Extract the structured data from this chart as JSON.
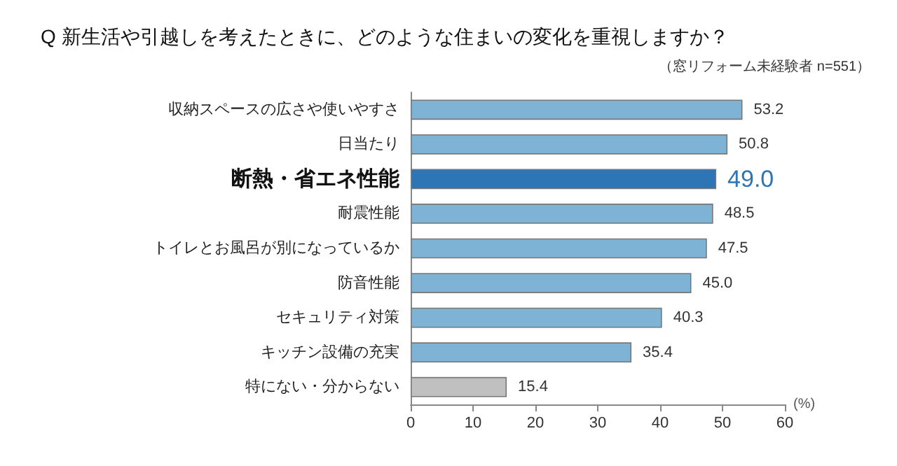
{
  "chart_data": {
    "type": "bar",
    "orientation": "horizontal",
    "title": "Q 新生活や引越しを考えたときに、どのような住まいの変化を重視しますか？",
    "subtitle": "（窓リフォーム未経験者 n=551）",
    "xlabel": "(%)",
    "categories": [
      "収納スペースの広さや使いやすさ",
      "日当たり",
      "断熱・省エネ性能",
      "耐震性能",
      "トイレとお風呂が別になっているか",
      "防音性能",
      "セキュリティ対策",
      "キッチン設備の充実",
      "特にない・分からない"
    ],
    "values": [
      53.2,
      50.8,
      49.0,
      48.5,
      47.5,
      45.0,
      40.3,
      35.4,
      15.4
    ],
    "value_labels": [
      "53.2",
      "50.8",
      "49.0",
      "48.5",
      "47.5",
      "45.0",
      "40.3",
      "35.4",
      "15.4"
    ],
    "colors": [
      "#7fb3d5",
      "#7fb3d5",
      "#2e75b6",
      "#7fb3d5",
      "#7fb3d5",
      "#7fb3d5",
      "#7fb3d5",
      "#7fb3d5",
      "#c0c0c0"
    ],
    "xlim": [
      0,
      60
    ],
    "xticks": [
      0,
      10,
      20,
      30,
      40,
      50,
      60
    ]
  }
}
